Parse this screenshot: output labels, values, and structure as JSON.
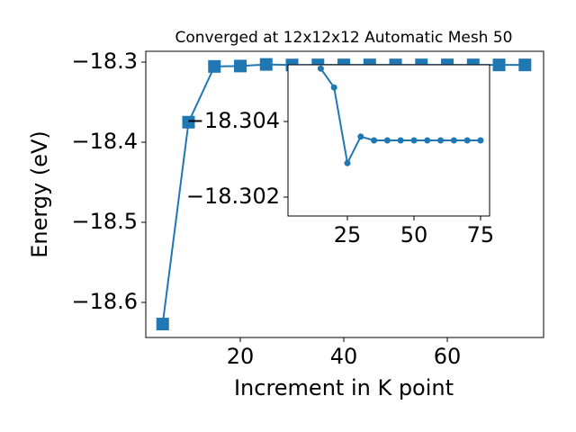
{
  "chart_data": [
    {
      "type": "line",
      "title": "Converged at 12x12x12 Automatic Mesh 50",
      "x_label": "Increment in K point",
      "y_label": "Energy (eV)",
      "x": [
        5,
        10,
        15,
        20,
        25,
        30,
        35,
        40,
        45,
        50,
        55,
        60,
        65,
        70,
        75
      ],
      "series": [
        {
          "color": "#1f77b4",
          "marker": "square",
          "values": [
            -18.627,
            -18.375,
            -18.3054,
            -18.3049,
            -18.3029,
            -18.3036,
            -18.3035,
            -18.3035,
            -18.3035,
            -18.3035,
            -18.3035,
            -18.3035,
            -18.3035,
            -18.3035,
            -18.3035
          ]
        }
      ],
      "xlim": [
        1.74,
        78.6
      ],
      "ylim": [
        -18.6438,
        -18.2865
      ],
      "xticks": [
        20,
        40,
        60
      ],
      "yticks": [
        {
          "value": -18.3,
          "label": "−18.3"
        },
        {
          "value": -18.4,
          "label": "−18.4"
        },
        {
          "value": -18.5,
          "label": "−18.5"
        },
        {
          "value": -18.6,
          "label": "−18.6"
        }
      ]
    },
    {
      "type": "line",
      "x": [
        15,
        20,
        25,
        30,
        35,
        40,
        45,
        50,
        55,
        60,
        65,
        70,
        75
      ],
      "series": [
        {
          "color": "#1f77b4",
          "marker": "circle",
          "values": [
            -18.3054,
            -18.3049,
            -18.3029,
            -18.3036,
            -18.3035,
            -18.3035,
            -18.3035,
            -18.3035,
            -18.3035,
            -18.3035,
            -18.3035,
            -18.3035,
            -18.3035
          ]
        }
      ],
      "xlim": [
        2.7,
        78.4
      ],
      "ylim": [
        -18.3015,
        -18.3055
      ],
      "xticks": [
        25,
        50,
        75
      ],
      "yticks": [
        {
          "value": -18.304,
          "label": "−18.304"
        },
        {
          "value": -18.302,
          "label": "−18.302"
        }
      ]
    }
  ]
}
